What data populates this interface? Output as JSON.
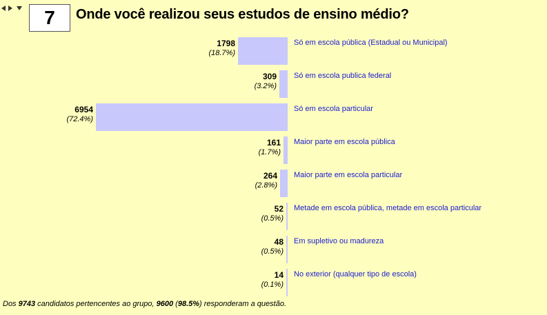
{
  "question": {
    "number": "7",
    "title": "Onde você realizou seus estudos de ensino médio?"
  },
  "chart_data": {
    "type": "bar",
    "orientation": "horizontal",
    "categories": [
      "Só em escola pública (Estadual ou Municipal)",
      "Só em escola publica federal",
      "Só em escola particular",
      "Maior parte em escola pública",
      "Maior parte em escola particular",
      "Metade em escola pública, metade em escola particular",
      "Em supletivo ou madureza",
      "No exterior (qualquer tipo de escola)"
    ],
    "values": [
      1798,
      309,
      6954,
      161,
      264,
      52,
      48,
      14
    ],
    "percent_labels": [
      "(18.7%)",
      "(3.2%)",
      "(72.4%)",
      "(1.7%)",
      "(2.8%)",
      "(0.5%)",
      "(0.5%)",
      "(0.1%)"
    ],
    "xlim": [
      0,
      6954
    ],
    "grid": false,
    "legend": "none"
  },
  "footer": {
    "p1": "Dos ",
    "total": "9743",
    "p2": " candidatos pertencentes ao grupo, ",
    "answered": "9600",
    "p3": " (",
    "answered_pct": "98.5%",
    "p4": ") responderam a questão."
  },
  "colors": {
    "background": "#fefebf",
    "bar": "#c8c8fc",
    "label": "#1a1ad0"
  }
}
